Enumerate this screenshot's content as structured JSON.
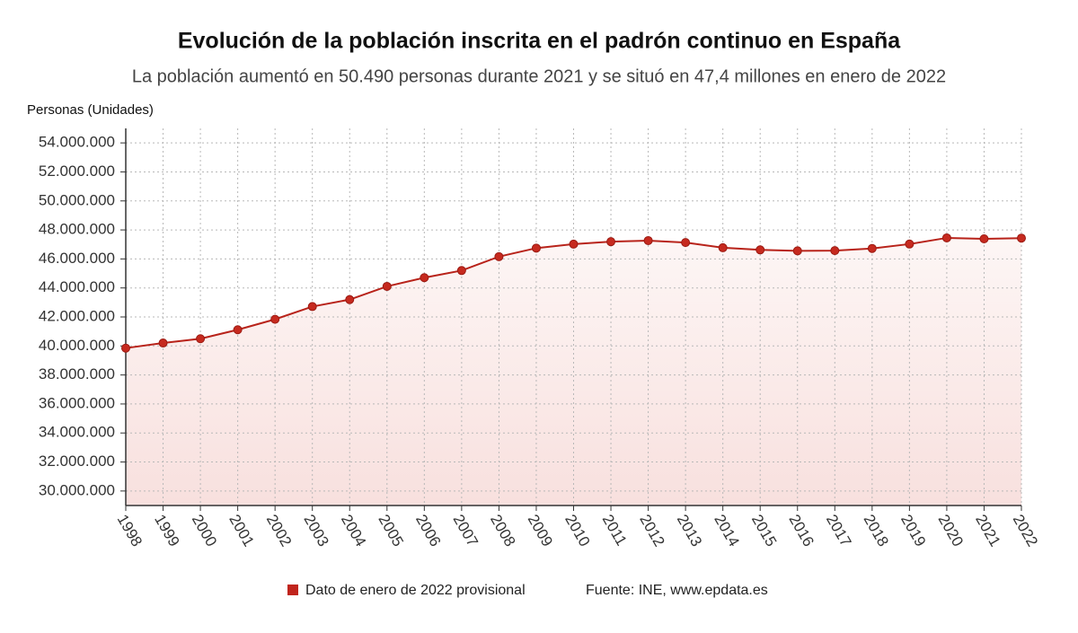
{
  "chart_data": {
    "type": "line",
    "title": "Evolución de la población inscrita en el padrón continuo en España",
    "subtitle": "La población aumentó en 50.490 personas durante 2021 y se situó en 47,4 millones en enero de 2022",
    "y_label": "Personas (Unidades)",
    "x": [
      1998,
      1999,
      2000,
      2001,
      2002,
      2003,
      2004,
      2005,
      2006,
      2007,
      2008,
      2009,
      2010,
      2011,
      2012,
      2013,
      2014,
      2015,
      2016,
      2017,
      2018,
      2019,
      2020,
      2021,
      2022
    ],
    "values": [
      39852651,
      40202160,
      40499791,
      41116842,
      41837894,
      42717064,
      43197684,
      44108530,
      44708964,
      45200737,
      46157822,
      46745807,
      47021031,
      47190493,
      47265321,
      47129783,
      46771341,
      46624382,
      46557008,
      46572132,
      46722980,
      47026208,
      47450795,
      47385107,
      47435597
    ],
    "color": "#b8231a",
    "xlim": [
      1998,
      2022
    ],
    "xticks": [
      1998,
      1999,
      2000,
      2001,
      2002,
      2003,
      2004,
      2005,
      2006,
      2007,
      2008,
      2009,
      2010,
      2011,
      2012,
      2013,
      2014,
      2015,
      2016,
      2017,
      2018,
      2019,
      2020,
      2021,
      2022
    ],
    "ylim": [
      29000000,
      55000000
    ],
    "yticks": [
      {
        "value": 30000000,
        "label": "30.000.000"
      },
      {
        "value": 32000000,
        "label": "32.000.000"
      },
      {
        "value": 34000000,
        "label": "34.000.000"
      },
      {
        "value": 36000000,
        "label": "36.000.000"
      },
      {
        "value": 38000000,
        "label": "38.000.000"
      },
      {
        "value": 40000000,
        "label": "40.000.000"
      },
      {
        "value": 42000000,
        "label": "42.000.000"
      },
      {
        "value": 44000000,
        "label": "44.000.000"
      },
      {
        "value": 46000000,
        "label": "46.000.000"
      },
      {
        "value": 48000000,
        "label": "48.000.000"
      },
      {
        "value": 50000000,
        "label": "50.000.000"
      },
      {
        "value": 52000000,
        "label": "52.000.000"
      },
      {
        "value": 54000000,
        "label": "54.000.000"
      }
    ],
    "grid": true,
    "note": {
      "text": "Dato de enero de 2022 provisional",
      "color": "#c0241c"
    },
    "source": "Fuente: INE, www.epdata.es"
  }
}
